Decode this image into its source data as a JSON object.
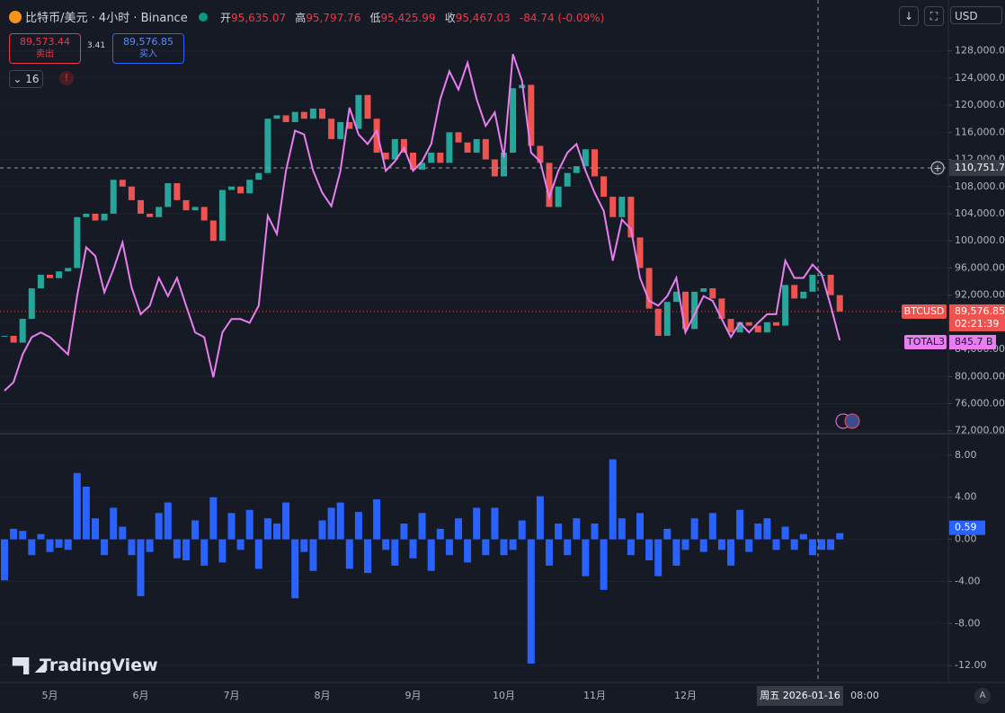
{
  "header": {
    "symbol": "比特币/美元 · 4小时 · Binance",
    "open_label": "开",
    "open": "95,635.07",
    "high_label": "高",
    "high": "95,797.76",
    "low_label": "低",
    "low": "95,425.99",
    "close_label": "收",
    "close": "95,467.03",
    "change": "-84.74 (-0.09%)"
  },
  "trade": {
    "sell_price": "89,573.44",
    "sell_label": "卖出",
    "spread": "3.41",
    "buy_price": "89,576.85",
    "buy_label": "买入"
  },
  "indicators_count": "16",
  "currency": "USD",
  "brand": "TradingView",
  "auto_label": "A",
  "chart_data": [
    {
      "type": "candlestick",
      "categories": [
        null,
        null,
        null,
        null,
        null,
        "5月",
        null,
        null,
        null,
        null,
        null,
        null,
        null,
        null,
        null,
        "6月",
        null,
        null,
        null,
        null,
        null,
        null,
        null,
        null,
        null,
        "7月",
        null,
        null,
        null,
        null,
        null,
        null,
        null,
        null,
        null,
        "8月",
        null,
        null,
        null,
        null,
        null,
        null,
        null,
        null,
        null,
        "9月",
        null,
        null,
        null,
        null,
        null,
        null,
        null,
        null,
        null,
        "10月",
        null,
        null,
        null,
        null,
        null,
        null,
        null,
        null,
        null,
        "11月",
        null,
        null,
        null,
        null,
        null,
        null,
        null,
        null,
        null,
        "12月",
        null,
        null,
        null,
        null,
        null,
        null,
        null,
        null,
        null,
        null,
        null,
        null,
        null,
        null,
        null,
        null,
        null
      ],
      "series": [
        {
          "name": "BTCUSD",
          "up_color": "#26a69a",
          "down_color": "#ef5350",
          "last_label": "89,576.85",
          "countdown": "02:21:39",
          "values": [
            86000,
            85000,
            88500,
            93000,
            95000,
            94500,
            95500,
            96000,
            103500,
            104000,
            103000,
            104000,
            109000,
            108000,
            106000,
            104000,
            103500,
            105000,
            108500,
            106000,
            104500,
            105000,
            103000,
            100000,
            107500,
            108000,
            107000,
            109000,
            110000,
            118000,
            118500,
            117500,
            119000,
            118000,
            119500,
            118000,
            115000,
            117500,
            116500,
            121500,
            118000,
            113000,
            112000,
            115000,
            113000,
            110500,
            111500,
            113000,
            111500,
            116000,
            114500,
            113000,
            115000,
            112000,
            109500,
            113000,
            122500,
            123000,
            114000,
            111500,
            105000,
            108000,
            110000,
            111000,
            113500,
            109500,
            106500,
            103500,
            106500,
            100500,
            96000,
            90000,
            86000,
            91000,
            92500,
            87000,
            92500,
            93000,
            91500,
            88500,
            86500,
            88000,
            87500,
            86500,
            88000,
            87500,
            93500,
            91500,
            92500,
            95000,
            95000,
            92000,
            89576.85
          ]
        },
        {
          "name": "TOTAL3",
          "color": "#e87ef0",
          "axis": "y2",
          "last_label": "845.7 B",
          "values": [
            793,
            802,
            831,
            849,
            854,
            849,
            840,
            831,
            892,
            943,
            934,
            896,
            920,
            948,
            901,
            873,
            882,
            911,
            892,
            911,
            882,
            854,
            849,
            807,
            854,
            868,
            868,
            864,
            882,
            976,
            957,
            1023,
            1065,
            1061,
            1023,
            1000,
            986,
            1023,
            1089,
            1061,
            1051,
            1065,
            1023,
            1033,
            1047,
            1023,
            1033,
            1051,
            1098,
            1127,
            1108,
            1136,
            1098,
            1070,
            1084,
            1037,
            1145,
            1117,
            1042,
            1033,
            995,
            1023,
            1042,
            1051,
            1023,
            1000,
            981,
            929,
            972,
            962,
            911,
            887,
            882,
            892,
            911,
            854,
            873,
            892,
            887,
            868,
            849,
            864,
            854,
            864,
            873,
            873,
            929,
            911,
            911,
            925,
            915,
            882,
            845.7
          ]
        }
      ],
      "ylim": [
        71700,
        135500
      ],
      "y2lim": [
        749,
        1201.6
      ],
      "yticks": [
        {
          "value": 72000,
          "label": "72,000.00"
        },
        {
          "value": 76000,
          "label": "76,000.00"
        },
        {
          "value": 80000,
          "label": "80,000.00"
        },
        {
          "value": 84000,
          "label": "84,000.00"
        },
        {
          "value": 88000,
          "label": "88,000.00"
        },
        {
          "value": 92000,
          "label": "92,000.00"
        },
        {
          "value": 96000,
          "label": "96,000.00"
        },
        {
          "value": 100000,
          "label": "100,000.00"
        },
        {
          "value": 104000,
          "label": "104,000.00"
        },
        {
          "value": 108000,
          "label": "108,000.00"
        },
        {
          "value": 112000,
          "label": "112,000.00"
        },
        {
          "value": 116000,
          "label": "116,000.00"
        },
        {
          "value": 120000,
          "label": "120,000.00"
        },
        {
          "value": 124000,
          "label": "124,000.00"
        },
        {
          "value": 128000,
          "label": "128,000.00"
        }
      ],
      "grid": true,
      "crosshair": {
        "price": 110751.73,
        "price_label": "110,751.73",
        "time_label": "周五 2026-01-16"
      },
      "extra_time_label": "08:00"
    },
    {
      "type": "histogram",
      "color": "#2962ff",
      "last_label": "0.59",
      "values": [
        -3.9,
        1.0,
        0.8,
        -1.5,
        0.5,
        -1.2,
        -0.8,
        -1.0,
        6.3,
        5.0,
        2.0,
        -1.5,
        3.0,
        1.2,
        -1.5,
        -5.4,
        -1.2,
        2.5,
        3.5,
        -1.8,
        -2.0,
        1.8,
        -2.5,
        4.0,
        -2.2,
        2.5,
        -1.0,
        2.8,
        -2.8,
        2.0,
        1.5,
        3.5,
        -5.6,
        -1.2,
        -3.0,
        1.8,
        3.0,
        3.5,
        -2.8,
        2.6,
        -3.2,
        3.8,
        -1.0,
        -2.5,
        1.5,
        -1.8,
        2.5,
        -3.0,
        1.0,
        -1.5,
        2.0,
        -2.2,
        3.0,
        -1.5,
        3.0,
        -1.5,
        -1.0,
        1.8,
        -11.8,
        4.1,
        -2.5,
        1.5,
        -1.5,
        2.0,
        -3.5,
        1.5,
        -4.8,
        7.6,
        2.0,
        -1.5,
        2.5,
        -2.0,
        -3.5,
        1.0,
        -2.5,
        -1.0,
        2.0,
        -1.2,
        2.5,
        -1.0,
        -2.5,
        2.8,
        -1.2,
        1.5,
        2.0,
        -1.0,
        1.2,
        -1.0,
        0.5,
        -1.5,
        -1.0,
        -1.0,
        0.59
      ],
      "ylim": [
        -13.6,
        9.95
      ],
      "yticks": [
        {
          "value": 8,
          "label": "8.00"
        },
        {
          "value": 4,
          "label": "4.00"
        },
        {
          "value": 0,
          "label": "0.00"
        },
        {
          "value": -4,
          "label": "-4.00"
        },
        {
          "value": -8,
          "label": "-8.00"
        },
        {
          "value": -12,
          "label": "-12.00"
        }
      ],
      "grid": true
    }
  ]
}
